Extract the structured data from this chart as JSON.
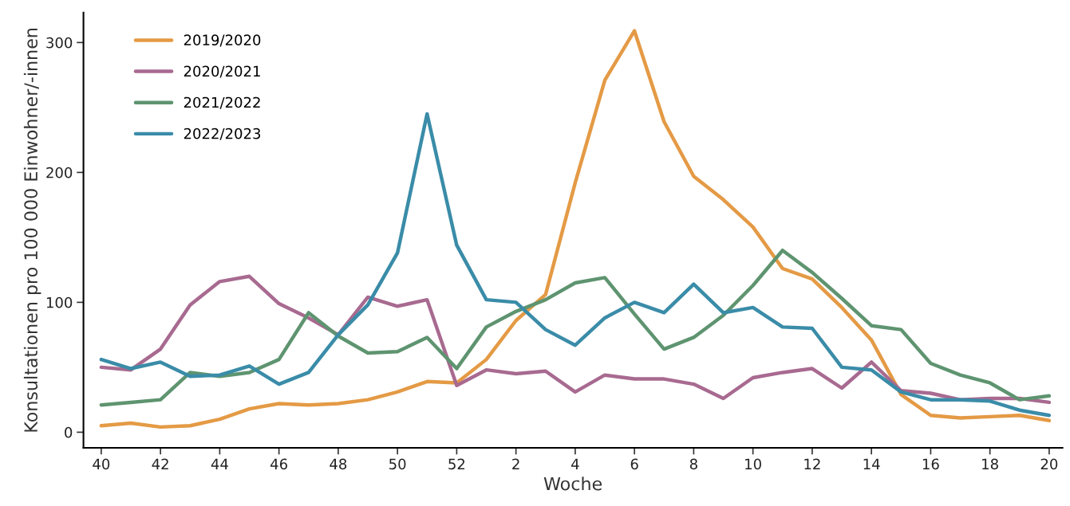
{
  "chart_data": {
    "type": "line",
    "xlabel": "Woche",
    "ylabel": "Konsultationen pro 100 000 Einwohner/-innen",
    "categories": [
      "40",
      null,
      "42",
      null,
      "44",
      null,
      "46",
      null,
      "48",
      null,
      "50",
      null,
      "52",
      null,
      "2",
      null,
      "4",
      null,
      "6",
      null,
      "8",
      null,
      "10",
      null,
      "12",
      null,
      "14",
      null,
      "16",
      null,
      "18",
      null,
      "20"
    ],
    "series": [
      {
        "name": "2019/2020",
        "color": "#e49a45",
        "values": [
          5,
          7,
          4,
          5,
          10,
          18,
          22,
          21,
          22,
          25,
          31,
          39,
          38,
          56,
          86,
          106,
          192,
          271,
          309,
          239,
          197,
          179,
          158,
          126,
          118,
          96,
          71,
          29,
          13,
          11,
          12,
          13,
          9
        ]
      },
      {
        "name": "2020/2021",
        "color": "#a86a90",
        "values": [
          50,
          48,
          64,
          98,
          116,
          120,
          99,
          88,
          75,
          104,
          97,
          102,
          36,
          48,
          45,
          47,
          31,
          44,
          41,
          41,
          37,
          26,
          42,
          46,
          49,
          34,
          54,
          32,
          30,
          25,
          26,
          26,
          23
        ]
      },
      {
        "name": "2021/2022",
        "color": "#5e9470",
        "values": [
          21,
          23,
          25,
          46,
          43,
          46,
          56,
          92,
          74,
          61,
          62,
          73,
          49,
          81,
          93,
          102,
          115,
          119,
          91,
          64,
          73,
          90,
          113,
          140,
          123,
          103,
          82,
          79,
          53,
          44,
          38,
          25,
          28
        ]
      },
      {
        "name": "2022/2023",
        "color": "#3a8ca8",
        "values": [
          56,
          49,
          54,
          43,
          44,
          51,
          37,
          46,
          75,
          98,
          138,
          245,
          144,
          102,
          100,
          79,
          67,
          88,
          100,
          92,
          114,
          92,
          96,
          81,
          80,
          50,
          48,
          31,
          25,
          25,
          24,
          17,
          13
        ]
      }
    ],
    "ylim": [
      -12,
      323
    ],
    "yticks": [
      0,
      100,
      200,
      300
    ],
    "grid": false,
    "legend": "top left",
    "line_style": "solid",
    "marker": "none"
  }
}
